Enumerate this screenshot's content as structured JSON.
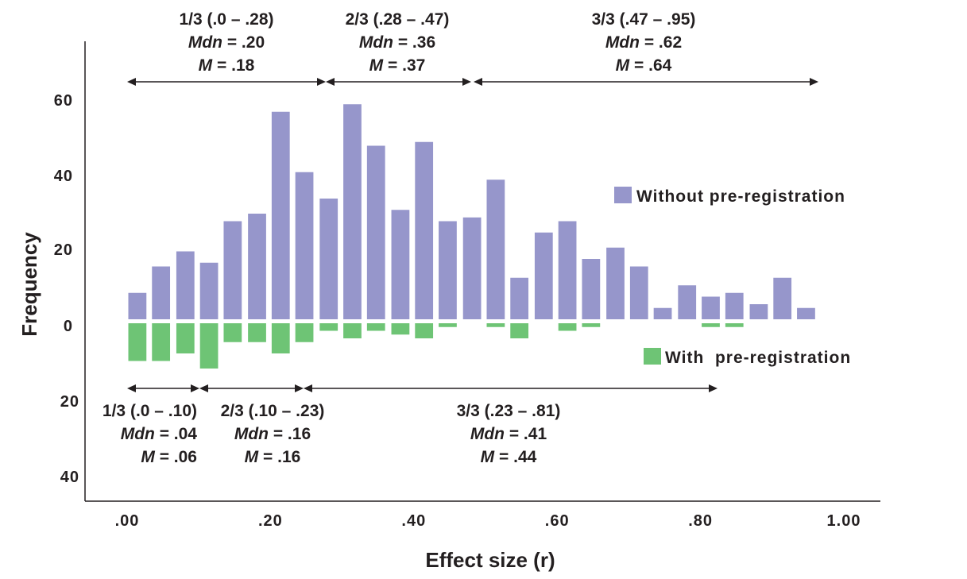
{
  "chart_data": {
    "type": "bar",
    "xlabel": "Effect size (r)",
    "ylabel": "Frequency",
    "x_ticks": [
      ".00",
      ".20",
      ".40",
      ".60",
      ".80",
      "1.00"
    ],
    "y_ticks_up": [
      "0",
      "20",
      "40",
      "60"
    ],
    "y_ticks_down": [
      "20",
      "40"
    ],
    "x_range": [
      0,
      1.0
    ],
    "bin_width": 0.033,
    "bin_starts": [
      0.0,
      0.033,
      0.067,
      0.1,
      0.133,
      0.167,
      0.2,
      0.233,
      0.267,
      0.3,
      0.333,
      0.367,
      0.4,
      0.433,
      0.467,
      0.5,
      0.533,
      0.567,
      0.6,
      0.633,
      0.667,
      0.7,
      0.733,
      0.767,
      0.8,
      0.833,
      0.867,
      0.9,
      0.933
    ],
    "series": [
      {
        "name": "Without pre-registration",
        "color": "#9696cb",
        "values": [
          7,
          14,
          18,
          15,
          26,
          28,
          55,
          39,
          32,
          57,
          46,
          29,
          47,
          26,
          27,
          37,
          11,
          23,
          26,
          16,
          19,
          14,
          3,
          9,
          6,
          7,
          4,
          11,
          3
        ]
      },
      {
        "name": "With pre-registration",
        "color": "#6ec475",
        "values": [
          10,
          10,
          8,
          12,
          5,
          5,
          8,
          5,
          2,
          4,
          2,
          3,
          4,
          1,
          0,
          1,
          4,
          0,
          2,
          1,
          0,
          0,
          0,
          0,
          1,
          1,
          0,
          0,
          0
        ]
      }
    ],
    "legend": [
      {
        "label": "Without pre-registration",
        "color": "#9696cb"
      },
      {
        "label": "With  pre-registration",
        "color": "#6ec475"
      }
    ],
    "annotations_top": [
      {
        "range_label": "1/3 (.0 – .28)",
        "mdn_label": "Mdn",
        "mdn_value": " = .20",
        "m_label": "M",
        "m_value": " = .18",
        "from": 0.0,
        "to": 0.28
      },
      {
        "range_label": "2/3 (.28 – .47)",
        "mdn_label": "Mdn",
        "mdn_value": " = .36",
        "m_label": "M",
        "m_value": " = .37",
        "from": 0.28,
        "to": 0.47
      },
      {
        "range_label": "3/3 (.47 – .95)",
        "mdn_label": "Mdn",
        "mdn_value": " = .62",
        "m_label": "M",
        "m_value": " = .64",
        "from": 0.47,
        "to": 0.95
      }
    ],
    "annotations_bottom": [
      {
        "range_label": "1/3 (.0 – .10)",
        "mdn_label": "Mdn",
        "mdn_value": " = .04",
        "m_label": "M",
        "m_value": " = .06",
        "from": 0.0,
        "to": 0.1
      },
      {
        "range_label": "2/3 (.10 – .23)",
        "mdn_label": "Mdn",
        "mdn_value": " = .16",
        "m_label": "M",
        "m_value": " = .16",
        "from": 0.1,
        "to": 0.23
      },
      {
        "range_label": "3/3 (.23 – .81)",
        "mdn_label": "Mdn",
        "mdn_value": " = .41",
        "m_label": "M",
        "m_value": " = .44",
        "from": 0.23,
        "to": 0.81
      }
    ]
  }
}
